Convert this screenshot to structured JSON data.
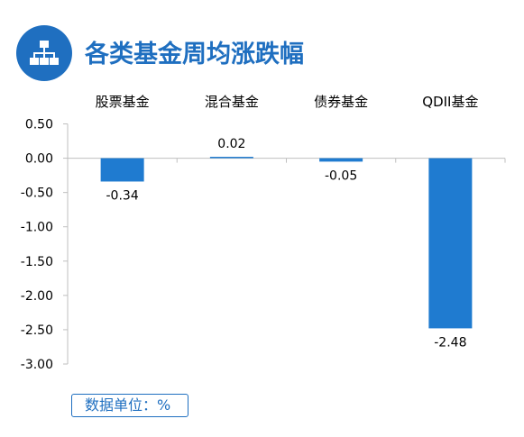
{
  "header": {
    "title": "各类基金周均涨跌幅",
    "icon": "org-chart-icon"
  },
  "unit_label": "数据单位：%",
  "colors": {
    "accent": "#1F6FC0",
    "bar": "#1F7BD0",
    "grid": "#D9D9D9",
    "axis": "#BFBFBF",
    "text": "#000000"
  },
  "chart_data": {
    "type": "bar",
    "categories": [
      "股票基金",
      "混合基金",
      "债券基金",
      "QDII基金"
    ],
    "values": [
      -0.34,
      0.02,
      -0.05,
      -2.48
    ],
    "value_labels": [
      "-0.34",
      "0.02",
      "-0.05",
      "-2.48"
    ],
    "title": "各类基金周均涨跌幅",
    "ylim": [
      -3.0,
      0.5
    ],
    "yticks": [
      "0.50",
      "0.00",
      "-0.50",
      "-1.00",
      "-1.50",
      "-2.00",
      "-2.50",
      "-3.00"
    ],
    "ytick_values": [
      0.5,
      0.0,
      -0.5,
      -1.0,
      -1.5,
      -2.0,
      -2.5,
      -3.0
    ],
    "category_axis_position": "top",
    "grid": false
  }
}
